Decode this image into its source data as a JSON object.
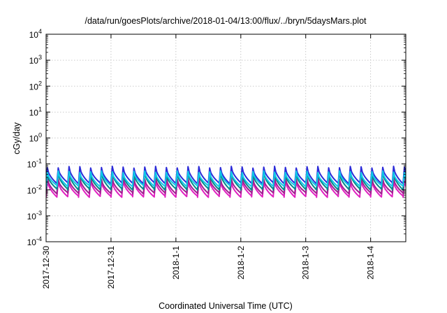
{
  "chart_data": {
    "type": "line",
    "title": "/data/run/goesPlots/archive/2018-01-04/13:00/flux/../bryn/5daysMars.plot",
    "xlabel": "Coordinated Universal Time (UTC)",
    "ylabel": "cGy/day",
    "yscale": "log",
    "ylim_exp": [
      -4,
      4
    ],
    "y_ticks": [
      {
        "base": "10",
        "exp": "-4"
      },
      {
        "base": "10",
        "exp": "-3"
      },
      {
        "base": "10",
        "exp": "-2"
      },
      {
        "base": "10",
        "exp": "-1"
      },
      {
        "base": "10",
        "exp": "0"
      },
      {
        "base": "10",
        "exp": "1"
      },
      {
        "base": "10",
        "exp": "2"
      },
      {
        "base": "10",
        "exp": "3"
      },
      {
        "base": "10",
        "exp": "4"
      }
    ],
    "x_start": "2017-12-30 00:00",
    "x_end": "2018-01-04 13:00",
    "x_ticks": [
      "2017-12-30",
      "2017-12-31",
      "2018-1-1",
      "2018-1-2",
      "2018-1-3",
      "2018-1-4"
    ],
    "grid": true,
    "cycles_per_day": 6,
    "series": [
      {
        "color": "#e020c0",
        "peak": 0.022,
        "trough": 0.0055
      },
      {
        "color": "#a02090",
        "peak": 0.028,
        "trough": 0.0075
      },
      {
        "color": "#2b2bd8",
        "peak": 0.075,
        "trough": 0.018
      },
      {
        "color": "#008a8a",
        "peak": 0.045,
        "trough": 0.0105
      },
      {
        "color": "#10c8e8",
        "peak": 0.05,
        "trough": 0.014
      }
    ]
  }
}
